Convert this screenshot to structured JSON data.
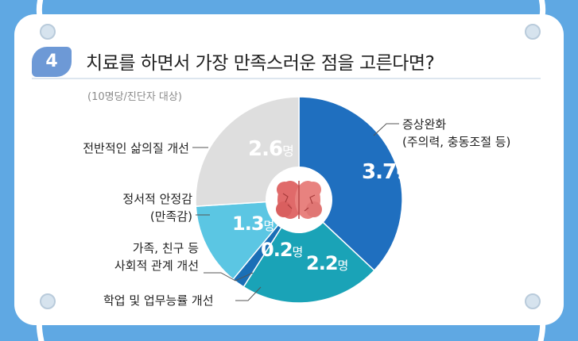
{
  "question_number": "4",
  "title": "치료를 하면서 가장 만족스러운 점을 고른다면?",
  "subtitle": "(10명당/진단자 대상)",
  "chart_data": {
    "type": "pie",
    "unit": "명",
    "slices": [
      {
        "label_lines": [
          "증상완화",
          "(주의력, 충동조절 등)"
        ],
        "value": 3.7,
        "value_label": "3.7",
        "color": "#1f6fbf"
      },
      {
        "label_lines": [
          "학업 및 업무능률 개선"
        ],
        "value": 2.2,
        "value_label": "2.2",
        "color": "#1aa3b7"
      },
      {
        "label_lines": [
          "가족, 친구 등",
          "사회적 관계 개선"
        ],
        "value": 0.2,
        "value_label": "0.2",
        "color": "#1a6fb6"
      },
      {
        "label_lines": [
          "정서적 안정감",
          "(만족감)"
        ],
        "value": 1.3,
        "value_label": "1.3",
        "color": "#5bc6e3"
      },
      {
        "label_lines": [
          "전반적인 삶의질 개선"
        ],
        "value": 2.6,
        "value_label": "2.6",
        "color": "#dedede"
      }
    ]
  }
}
